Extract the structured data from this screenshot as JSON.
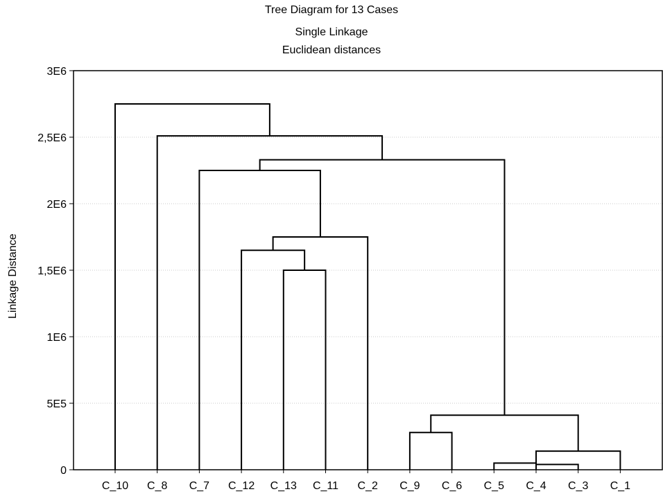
{
  "chart_data": {
    "type": "dendrogram",
    "title": "Tree Diagram for 13 Cases",
    "subtitle": [
      "Single Linkage",
      "Euclidean distances"
    ],
    "ylabel": "Linkage Distance",
    "xlabel": "",
    "ylim": [
      0,
      3000000
    ],
    "y_ticks": [
      {
        "value": 0,
        "label": "0"
      },
      {
        "value": 500000,
        "label": "5E5"
      },
      {
        "value": 1000000,
        "label": "1E6"
      },
      {
        "value": 1500000,
        "label": "1,5E6"
      },
      {
        "value": 2000000,
        "label": "2E6"
      },
      {
        "value": 2500000,
        "label": "2,5E6"
      },
      {
        "value": 3000000,
        "label": "3E6"
      }
    ],
    "grid": true,
    "leaves": [
      "C_10",
      "C_8",
      "C_7",
      "C_12",
      "C_13",
      "C_11",
      "C_2",
      "C_9",
      "C_6",
      "C_5",
      "C_4",
      "C_3",
      "C_1"
    ],
    "merges": [
      {
        "a": "C_5",
        "b": "C_4",
        "height": 50000
      },
      {
        "a": "C_4",
        "b": "C_3",
        "height": 40000
      },
      {
        "a": "C_5C_4C_3",
        "b": "C_1",
        "height": 140000
      },
      {
        "a": "C_9",
        "b": "C_6",
        "height": 280000
      },
      {
        "a": "C_9C_6",
        "b": "C_5C_4C_3C_1",
        "height": 410000
      },
      {
        "a": "C_13",
        "b": "C_11",
        "height": 1500000
      },
      {
        "a": "C_12",
        "b": "C_13C_11",
        "height": 1650000
      },
      {
        "a": "C_12C_13C_11",
        "b": "C_2",
        "height": 1750000
      },
      {
        "a": "C_7",
        "b": "C_12C_13C_11C_2",
        "height": 2250000
      },
      {
        "a": "C_7group",
        "b": "C_9group",
        "height": 2330000
      },
      {
        "a": "C_8",
        "b": "C_7C_9group",
        "height": 2510000
      },
      {
        "a": "C_10",
        "b": "C_8group",
        "height": 2750000
      }
    ]
  }
}
